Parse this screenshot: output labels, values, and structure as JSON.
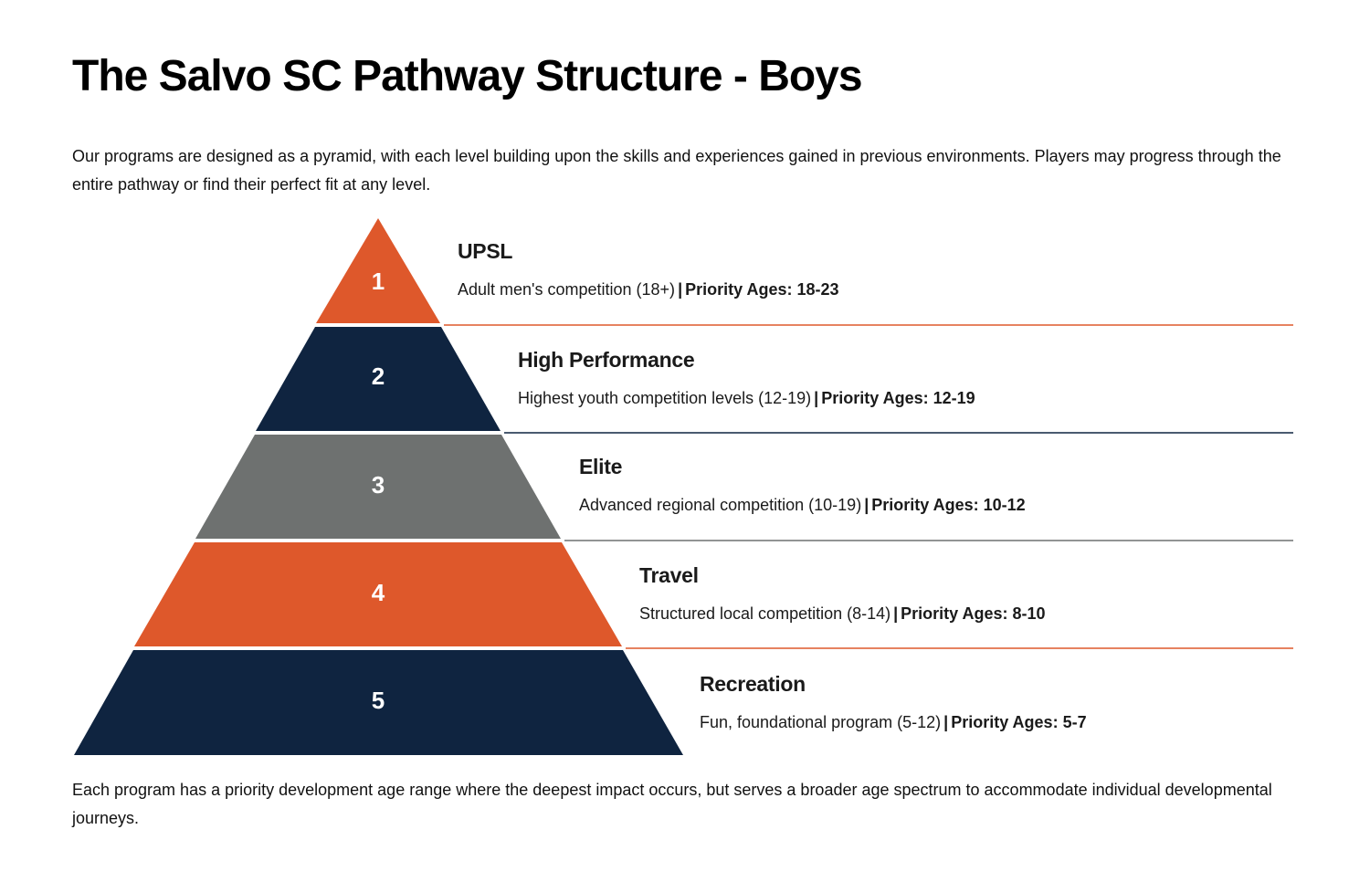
{
  "title": "The Salvo SC Pathway Structure - Boys",
  "intro": "Our programs are designed as a pyramid, with each level building upon the skills and experiences gained in previous environments. Players may progress through the entire pathway or find their perfect fit at any level.",
  "separator": "|",
  "levels": [
    {
      "number": "1",
      "name": "UPSL",
      "description": "Adult men's competition (18+)",
      "priority": "Priority Ages: 18-23",
      "color": "#DE582B"
    },
    {
      "number": "2",
      "name": "High Performance",
      "description": "Highest youth competition levels (12-19)",
      "priority": "Priority Ages: 12-19",
      "color": "#0F2440"
    },
    {
      "number": "3",
      "name": "Elite",
      "description": "Advanced regional competition (10-19)",
      "priority": "Priority Ages: 10-12",
      "color": "#6E7170"
    },
    {
      "number": "4",
      "name": "Travel",
      "description": "Structured local competition (8-14)",
      "priority": "Priority Ages: 8-10",
      "color": "#DE582B"
    },
    {
      "number": "5",
      "name": "Recreation",
      "description": "Fun, foundational program (5-12)",
      "priority": "Priority Ages: 5-7",
      "color": "#0F2440"
    }
  ],
  "footnote": "Each program has a priority development age range where the deepest impact occurs, but serves a broader age spectrum to accommodate individual developmental journeys."
}
